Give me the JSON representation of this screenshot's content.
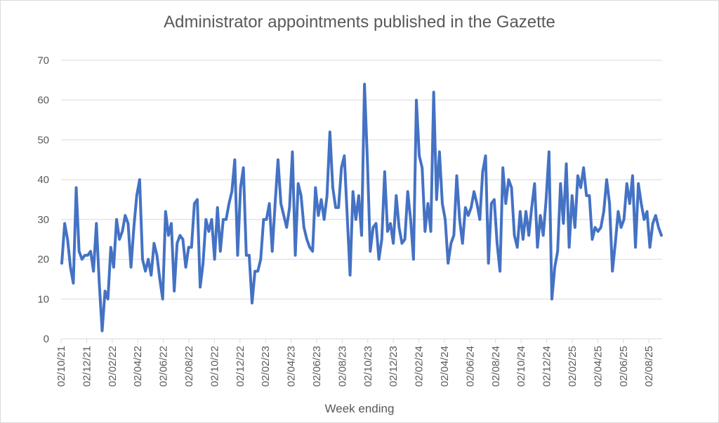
{
  "chart_data": {
    "type": "line",
    "title": "Administrator appointments published in the Gazette",
    "xlabel": "Week ending",
    "ylabel": "",
    "ylim": [
      0,
      70
    ],
    "yticks": [
      0,
      10,
      20,
      30,
      40,
      50,
      60,
      70
    ],
    "grid": true,
    "legend": "none",
    "line_color": "#4472C4",
    "grid_color": "#d9d9d9",
    "x_ticks": [
      "02/10/21",
      "02/12/21",
      "02/02/22",
      "02/04/22",
      "02/06/22",
      "02/08/22",
      "02/10/22",
      "02/12/22",
      "02/02/23",
      "02/04/23",
      "02/06/23",
      "02/08/23",
      "02/10/23",
      "02/12/23",
      "02/02/24",
      "02/04/24",
      "02/06/24",
      "02/08/24",
      "02/10/24",
      "02/12/24",
      "02/02/25",
      "02/04/25",
      "02/06/25",
      "02/08/25"
    ],
    "series": [
      {
        "name": "Administrator appointments",
        "values": [
          19,
          29,
          25,
          18,
          14,
          38,
          22,
          20,
          21,
          21,
          22,
          17,
          29,
          14,
          2,
          12,
          10,
          23,
          18,
          30,
          25,
          27,
          31,
          29,
          18,
          28,
          36,
          40,
          20,
          17,
          20,
          16,
          24,
          21,
          15,
          10,
          32,
          26,
          29,
          12,
          24,
          26,
          25,
          18,
          23,
          23,
          34,
          35,
          13,
          19,
          30,
          27,
          30,
          20,
          33,
          22,
          30,
          30,
          34,
          37,
          45,
          21,
          38,
          43,
          21,
          21,
          9,
          17,
          17,
          20,
          30,
          30,
          34,
          22,
          34,
          45,
          34,
          31,
          28,
          33,
          47,
          21,
          39,
          36,
          28,
          25,
          23,
          22,
          38,
          31,
          35,
          30,
          36,
          52,
          38,
          33,
          33,
          43,
          46,
          31,
          16,
          37,
          30,
          36,
          26,
          64,
          45,
          22,
          28,
          29,
          20,
          25,
          42,
          27,
          29,
          24,
          36,
          28,
          24,
          25,
          37,
          30,
          20,
          60,
          46,
          43,
          27,
          34,
          27,
          62,
          35,
          47,
          34,
          30,
          19,
          24,
          26,
          41,
          30,
          24,
          33,
          31,
          33,
          37,
          34,
          30,
          42,
          46,
          19,
          34,
          35,
          24,
          17,
          43,
          34,
          40,
          38,
          26,
          23,
          32,
          25,
          32,
          26,
          33,
          39,
          23,
          31,
          26,
          35,
          47,
          10,
          18,
          22,
          39,
          29,
          44,
          23,
          36,
          28,
          41,
          38,
          43,
          36,
          36,
          25,
          28,
          27,
          28,
          32,
          40,
          34,
          17,
          24,
          32,
          28,
          30,
          39,
          34,
          41,
          23,
          39,
          34,
          30,
          32,
          23,
          29,
          31,
          28,
          26
        ]
      }
    ]
  }
}
